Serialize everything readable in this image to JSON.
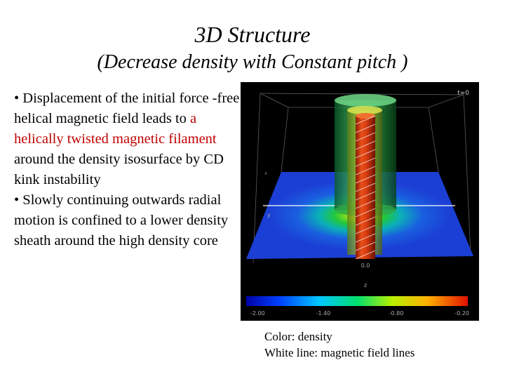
{
  "slide": {
    "title": "3D Structure",
    "subtitle": "(Decrease density with Constant pitch )",
    "bullet1": {
      "part1": "• Displacement of the initial force -free helical magnetic field leads to ",
      "highlight": "a helically twisted magnetic filament",
      "part2": " around the density isosurface by CD kink instability"
    },
    "bullet2": "• Slowly continuing outwards radial motion is confined to a lower density sheath around the high density core",
    "highlight_color": "#c00000"
  },
  "figure": {
    "time_label": "t=0",
    "axis_x_label": "x",
    "axis_y_label": "y",
    "axis_z_label": "z",
    "x_tick": "0.0",
    "colorbar_ticks": [
      "-2.00",
      "-1.40",
      "-0.80",
      "-0.20"
    ]
  },
  "caption": {
    "line1": "Color: density",
    "line2": "White line: magnetic field lines"
  }
}
